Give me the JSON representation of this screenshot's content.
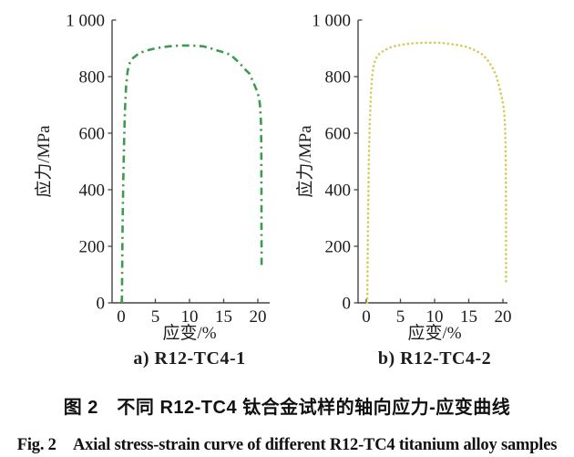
{
  "figure": {
    "caption_zh": "图 2　不同 R12-TC4 钛合金试样的轴向应力-应变曲线",
    "caption_en": "Fig. 2　Axial stress-strain curve of different R12-TC4 titanium alloy samples"
  },
  "chart_data": [
    {
      "type": "line",
      "subplot_label": "a) R12-TC4-1",
      "xlabel": "应变/%",
      "ylabel": "应力/MPa",
      "xlim": [
        -1.3,
        21.7
      ],
      "ylim": [
        0,
        1000
      ],
      "xticks": [
        0,
        5,
        10,
        15,
        20
      ],
      "xtick_labels": [
        "0",
        "5",
        "10",
        "15",
        "20"
      ],
      "yticks": [
        0,
        200,
        400,
        600,
        800,
        1000
      ],
      "ytick_labels": [
        "0",
        "200",
        "400",
        "600",
        "800",
        "1 000"
      ],
      "grid": false,
      "legend_position": "none",
      "line_style": "dash-dot",
      "color": "#3a9c50",
      "series": [
        {
          "name": "R12-TC4-1",
          "points": [
            [
              0.1,
              0
            ],
            [
              0.15,
              120
            ],
            [
              0.2,
              260
            ],
            [
              0.3,
              430
            ],
            [
              0.42,
              570
            ],
            [
              0.55,
              680
            ],
            [
              0.72,
              765
            ],
            [
              0.95,
              820
            ],
            [
              1.25,
              848
            ],
            [
              1.7,
              865
            ],
            [
              2.3,
              877
            ],
            [
              3,
              886
            ],
            [
              4,
              894
            ],
            [
              5,
              900
            ],
            [
              6,
              904
            ],
            [
              7,
              907
            ],
            [
              8,
              909
            ],
            [
              9,
              910
            ],
            [
              10,
              910
            ],
            [
              11,
              909
            ],
            [
              12,
              907
            ],
            [
              13,
              901
            ],
            [
              14,
              893
            ],
            [
              15,
              886
            ],
            [
              16,
              877
            ],
            [
              16.8,
              860
            ],
            [
              17.5,
              843
            ],
            [
              18.2,
              824
            ],
            [
              18.8,
              810
            ],
            [
              19.3,
              781
            ],
            [
              19.9,
              748
            ],
            [
              20.2,
              722
            ],
            [
              20.35,
              690
            ],
            [
              20.45,
              640
            ],
            [
              20.5,
              560
            ],
            [
              20.52,
              460
            ],
            [
              20.53,
              360
            ],
            [
              20.54,
              260
            ],
            [
              20.55,
              180
            ],
            [
              20.55,
              128
            ]
          ]
        }
      ]
    },
    {
      "type": "line",
      "subplot_label": "b) R12-TC4-2",
      "xlabel": "应变/%",
      "ylabel": "应力/MPa",
      "xlim": [
        -1.3,
        21.7
      ],
      "ylim": [
        0,
        1000
      ],
      "xticks": [
        0,
        5,
        10,
        15,
        20
      ],
      "xtick_labels": [
        "0",
        "5",
        "10",
        "15",
        "20"
      ],
      "yticks": [
        0,
        200,
        400,
        600,
        800,
        1000
      ],
      "ytick_labels": [
        "0",
        "200",
        "400",
        "600",
        "800",
        "1 000"
      ],
      "grid": false,
      "legend_position": "none",
      "line_style": "dotted",
      "color": "#d6ca55",
      "series": [
        {
          "name": "R12-TC4-2",
          "points": [
            [
              0.15,
              0
            ],
            [
              0.2,
              150
            ],
            [
              0.28,
              330
            ],
            [
              0.38,
              500
            ],
            [
              0.5,
              630
            ],
            [
              0.65,
              730
            ],
            [
              0.85,
              800
            ],
            [
              1.1,
              845
            ],
            [
              1.5,
              868
            ],
            [
              2,
              883
            ],
            [
              2.7,
              894
            ],
            [
              3.5,
              903
            ],
            [
              4.5,
              910
            ],
            [
              5.5,
              914
            ],
            [
              6.5,
              917
            ],
            [
              7.5,
              919
            ],
            [
              8.5,
              920
            ],
            [
              9.5,
              920
            ],
            [
              10.5,
              920
            ],
            [
              11.5,
              918
            ],
            [
              12.5,
              915
            ],
            [
              13.5,
              911
            ],
            [
              14.5,
              906
            ],
            [
              15.5,
              898
            ],
            [
              16.3,
              888
            ],
            [
              17,
              878
            ],
            [
              17.7,
              860
            ],
            [
              18.4,
              835
            ],
            [
              19,
              805
            ],
            [
              19.5,
              760
            ],
            [
              19.8,
              730
            ],
            [
              20.05,
              700
            ],
            [
              20.2,
              668
            ],
            [
              20.3,
              625
            ],
            [
              20.38,
              560
            ],
            [
              20.42,
              470
            ],
            [
              20.44,
              380
            ],
            [
              20.45,
              290
            ],
            [
              20.45,
              200
            ],
            [
              20.45,
              120
            ],
            [
              20.45,
              70
            ]
          ]
        }
      ]
    }
  ]
}
